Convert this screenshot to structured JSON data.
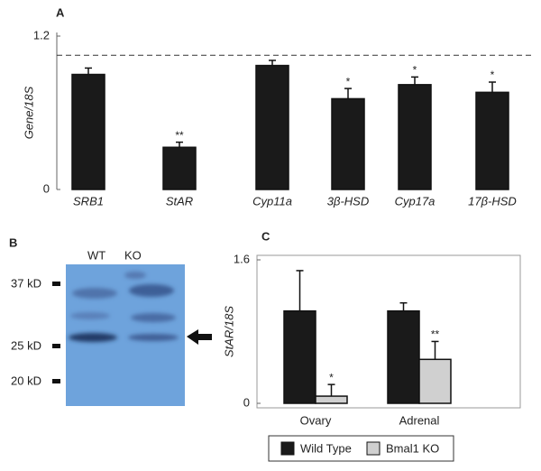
{
  "chart_data": [
    {
      "type": "bar",
      "label": "A",
      "ylabel": "Gene/18S",
      "categories": [
        "SRB1",
        "StAR",
        "Cyp11a",
        "3β-HSD",
        "Cyp17a",
        "17β-HSD"
      ],
      "values": [
        0.9,
        0.33,
        0.97,
        0.71,
        0.82,
        0.76
      ],
      "errors": [
        0.05,
        0.04,
        0.04,
        0.08,
        0.06,
        0.08
      ],
      "significance": [
        null,
        "**",
        null,
        "*",
        "*",
        "*"
      ],
      "color": "#1a1a1a",
      "ylim": [
        0,
        1.2
      ],
      "yticks": [
        0,
        1.2
      ],
      "reference_line": 1.05
    },
    {
      "type": "bar",
      "label": "C",
      "ylabel": "StAR/18S",
      "categories": [
        "Ovary",
        "Adrenal"
      ],
      "series": [
        {
          "name": "Wild Type",
          "color": "#1a1a1a",
          "values": [
            1.03,
            1.03
          ],
          "errors": [
            0.45,
            0.09
          ],
          "significance": [
            null,
            null
          ]
        },
        {
          "name": "Bmal1 KO",
          "color": "#d0d0d0",
          "values": [
            0.08,
            0.49
          ],
          "errors": [
            0.13,
            0.2
          ],
          "significance": [
            "*",
            "**"
          ]
        }
      ],
      "ylim": [
        0,
        1.6
      ],
      "yticks": [
        0,
        1.6
      ]
    }
  ],
  "blot": {
    "label": "B",
    "lanes": [
      "WT",
      "KO"
    ],
    "markers": [
      "37 kD",
      "25 kD",
      "20 kD"
    ]
  }
}
